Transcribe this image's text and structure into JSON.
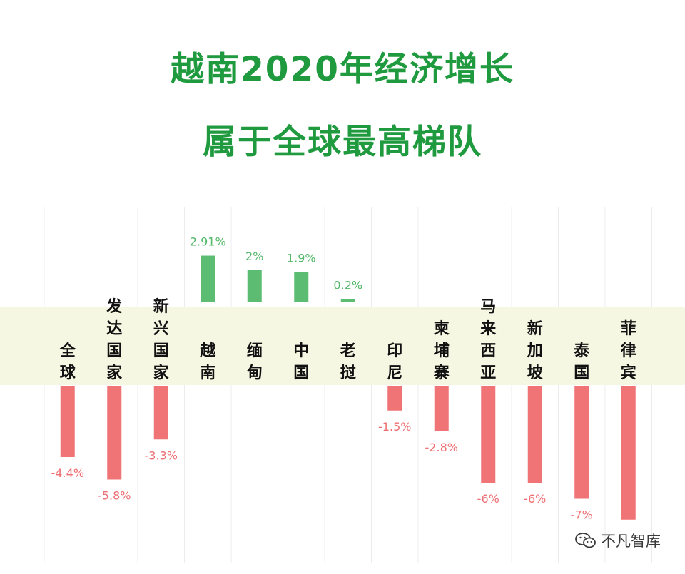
{
  "title_line1": "越南2020年经济增长",
  "title_line2": "属于全球最高梯队",
  "watermark": "不凡智库",
  "colors": {
    "title": "#1f9a3f",
    "positive_bar": "#5cbd72",
    "negative_bar": "#f07376",
    "positive_label": "#54b86a",
    "negative_label": "#ee6f73",
    "band": "#f6f7e3",
    "category_text": "#111111"
  },
  "chart_data": {
    "type": "bar",
    "categories": [
      "全球",
      "发达国家",
      "新兴国家",
      "越南",
      "缅甸",
      "中国",
      "老挝",
      "印尼",
      "柬埔寨",
      "马来西亚",
      "新加坡",
      "泰国",
      "菲律宾"
    ],
    "values": [
      -4.4,
      -5.8,
      -3.3,
      2.91,
      2.0,
      1.9,
      0.2,
      -1.5,
      -2.8,
      -6.0,
      -6.0,
      -7.0,
      -8.3
    ],
    "value_labels": [
      "-4.4%",
      "-5.8%",
      "-3.3%",
      "2.91%",
      "2%",
      "1.9%",
      "0.2%",
      "-1.5%",
      "-2.8%",
      "-6%",
      "-6%",
      "-7%",
      ""
    ],
    "unit": "%",
    "grid": false,
    "legend": "none"
  }
}
